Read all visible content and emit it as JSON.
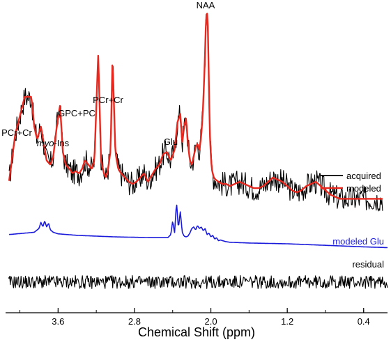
{
  "chart_data": {
    "type": "line",
    "title": "",
    "xlabel": "Chemical Shift (ppm)",
    "ylabel": "",
    "x_reversed": true,
    "xlim": [
      4.15,
      0.15
    ],
    "grid": false,
    "x_ticks": [
      "3.6",
      "2.8",
      "2.0",
      "1.2",
      "0.4"
    ],
    "x_tick_values": [
      3.6,
      2.8,
      2.0,
      1.2,
      0.4
    ],
    "colors": {
      "acquired": "#000000",
      "modeled": "#e8281e",
      "glu": "#1a1adb",
      "residual": "#000000",
      "axis": "#000000"
    },
    "legend": {
      "placement": "right",
      "entries": [
        {
          "name": "acquired",
          "color": "#000000"
        },
        {
          "name": "modeled",
          "color": "#e8281e"
        }
      ]
    },
    "annotations": {
      "pcr_cr_left": "PCr+Cr",
      "myo_ins_italic": "myo",
      "myo_ins_rest": "-Ins",
      "gpc_pc": "GPC+PC",
      "pcr_cr_mid": "PCr+Cr",
      "glu": "Glu",
      "naa": "NAA",
      "modeled_glu": "modeled Glu",
      "residual": "residual"
    },
    "series": [
      {
        "name": "modeled",
        "x": [
          4.12,
          4.05,
          3.95,
          3.88,
          3.85,
          3.82,
          3.78,
          3.75,
          3.72,
          3.68,
          3.65,
          3.62,
          3.58,
          3.55,
          3.52,
          3.48,
          3.45,
          3.42,
          3.38,
          3.35,
          3.32,
          3.28,
          3.25,
          3.22,
          3.2,
          3.18,
          3.15,
          3.12,
          3.1,
          3.08,
          3.05,
          3.03,
          3.0,
          2.97,
          2.94,
          2.9,
          2.86,
          2.82,
          2.78,
          2.74,
          2.7,
          2.66,
          2.62,
          2.58,
          2.54,
          2.5,
          2.46,
          2.42,
          2.38,
          2.35,
          2.32,
          2.3,
          2.28,
          2.26,
          2.24,
          2.22,
          2.2,
          2.18,
          2.16,
          2.14,
          2.12,
          2.1,
          2.08,
          2.06,
          2.05,
          2.04,
          2.03,
          2.02,
          2.01,
          2.0,
          1.99,
          1.98,
          1.97,
          1.95,
          1.92,
          1.88,
          1.84,
          1.8,
          1.75,
          1.7,
          1.65,
          1.6,
          1.55,
          1.5,
          1.45,
          1.4,
          1.35,
          1.3,
          1.25,
          1.2,
          1.15,
          1.1,
          1.05,
          1.0,
          0.95,
          0.9,
          0.85,
          0.8,
          0.75,
          0.7,
          0.65,
          0.6,
          0.55,
          0.5,
          0.45,
          0.4,
          0.35,
          0.3,
          0.25,
          0.2
        ],
        "y": [
          0.18,
          0.42,
          0.6,
          0.6,
          0.46,
          0.4,
          0.46,
          0.38,
          0.3,
          0.28,
          0.32,
          0.44,
          0.56,
          0.34,
          0.28,
          0.26,
          0.24,
          0.25,
          0.24,
          0.26,
          0.3,
          0.28,
          0.26,
          0.3,
          0.55,
          0.8,
          0.3,
          0.24,
          0.22,
          0.25,
          0.35,
          0.78,
          0.34,
          0.26,
          0.24,
          0.22,
          0.2,
          0.19,
          0.2,
          0.22,
          0.24,
          0.2,
          0.23,
          0.26,
          0.28,
          0.33,
          0.34,
          0.3,
          0.35,
          0.48,
          0.52,
          0.38,
          0.46,
          0.5,
          0.38,
          0.3,
          0.28,
          0.32,
          0.36,
          0.38,
          0.35,
          0.42,
          0.56,
          0.82,
          0.98,
          1.0,
          0.92,
          0.62,
          0.42,
          0.32,
          0.26,
          0.24,
          0.22,
          0.21,
          0.2,
          0.19,
          0.19,
          0.18,
          0.19,
          0.2,
          0.19,
          0.18,
          0.17,
          0.17,
          0.18,
          0.2,
          0.22,
          0.21,
          0.2,
          0.18,
          0.16,
          0.15,
          0.16,
          0.18,
          0.19,
          0.2,
          0.18,
          0.16,
          0.14,
          0.13,
          0.12,
          0.12,
          0.12,
          0.12,
          0.12,
          0.12,
          0.12,
          0.12,
          0.12,
          0.12
        ]
      },
      {
        "name": "modeled Glu",
        "x": [
          4.12,
          3.85,
          3.8,
          3.78,
          3.76,
          3.74,
          3.72,
          3.7,
          3.68,
          3.65,
          3.6,
          3.4,
          3.0,
          2.6,
          2.45,
          2.42,
          2.4,
          2.38,
          2.36,
          2.34,
          2.32,
          2.3,
          2.28,
          2.26,
          2.24,
          2.22,
          2.2,
          2.18,
          2.16,
          2.14,
          2.12,
          2.1,
          2.08,
          2.06,
          2.04,
          2.02,
          2.0,
          1.98,
          1.96,
          1.94,
          1.92,
          1.9,
          1.85,
          1.8,
          1.6,
          1.2,
          0.8,
          0.4,
          0.15
        ],
        "y": [
          0.12,
          0.15,
          0.2,
          0.28,
          0.22,
          0.3,
          0.22,
          0.27,
          0.18,
          0.15,
          0.13,
          0.11,
          0.09,
          0.08,
          0.08,
          0.12,
          0.3,
          0.14,
          0.55,
          0.2,
          0.42,
          0.15,
          0.1,
          0.09,
          0.1,
          0.14,
          0.2,
          0.22,
          0.18,
          0.24,
          0.2,
          0.22,
          0.17,
          0.2,
          0.12,
          0.14,
          0.09,
          0.11,
          0.06,
          0.08,
          0.04,
          0.05,
          0.03,
          0.02,
          0.01,
          0.0,
          -0.02,
          -0.04,
          -0.05
        ]
      },
      {
        "name": "acquired",
        "description_source": "modeled plus noise",
        "noise_amplitude": 0.06
      },
      {
        "name": "residual",
        "noise_amplitude": 0.25
      }
    ]
  }
}
